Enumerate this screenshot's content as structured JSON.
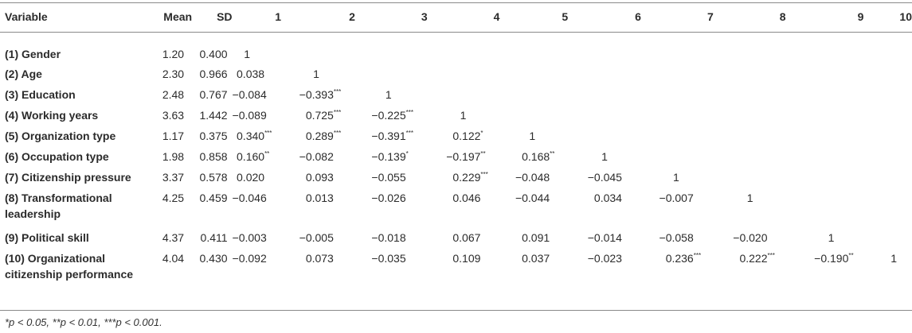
{
  "headers": [
    "Variable",
    "Mean",
    "SD",
    "1",
    "2",
    "3",
    "4",
    "5",
    "6",
    "7",
    "8",
    "9",
    "10"
  ],
  "rows": [
    {
      "variable": "(1) Gender",
      "mean": "1.20",
      "sd": "0.400",
      "cells": [
        {
          "v": "1",
          "s": ""
        }
      ]
    },
    {
      "variable": "(2) Age",
      "mean": "2.30",
      "sd": "0.966",
      "cells": [
        {
          "v": "0.038",
          "s": ""
        },
        {
          "v": "1",
          "s": ""
        }
      ]
    },
    {
      "variable": "(3) Education",
      "mean": "2.48",
      "sd": "0.767",
      "cells": [
        {
          "v": "−0.084",
          "s": ""
        },
        {
          "v": "−0.393",
          "s": "***"
        },
        {
          "v": "1",
          "s": ""
        }
      ]
    },
    {
      "variable": "(4) Working years",
      "mean": "3.63",
      "sd": "1.442",
      "cells": [
        {
          "v": "−0.089",
          "s": ""
        },
        {
          "v": "0.725",
          "s": "***"
        },
        {
          "v": "−0.225",
          "s": "***"
        },
        {
          "v": "1",
          "s": ""
        }
      ]
    },
    {
      "variable": "(5) Organization type",
      "mean": "1.17",
      "sd": "0.375",
      "cells": [
        {
          "v": "0.340",
          "s": "***"
        },
        {
          "v": "0.289",
          "s": "***"
        },
        {
          "v": "−0.391",
          "s": "***"
        },
        {
          "v": "0.122",
          "s": "*"
        },
        {
          "v": "1",
          "s": ""
        }
      ]
    },
    {
      "variable": "(6) Occupation type",
      "mean": "1.98",
      "sd": "0.858",
      "cells": [
        {
          "v": "0.160",
          "s": "**"
        },
        {
          "v": "−0.082",
          "s": ""
        },
        {
          "v": "−0.139",
          "s": "*"
        },
        {
          "v": "−0.197",
          "s": "**"
        },
        {
          "v": "0.168",
          "s": "**"
        },
        {
          "v": "1",
          "s": ""
        }
      ]
    },
    {
      "variable": "(7) Citizenship pressure",
      "mean": "3.37",
      "sd": "0.578",
      "cells": [
        {
          "v": "0.020",
          "s": ""
        },
        {
          "v": "0.093",
          "s": ""
        },
        {
          "v": "−0.055",
          "s": ""
        },
        {
          "v": "0.229",
          "s": "***"
        },
        {
          "v": "−0.048",
          "s": ""
        },
        {
          "v": "−0.045",
          "s": ""
        },
        {
          "v": "1",
          "s": ""
        }
      ]
    },
    {
      "variable": "(8) Transformational leadership",
      "mean": "4.25",
      "sd": "0.459",
      "cells": [
        {
          "v": "−0.046",
          "s": ""
        },
        {
          "v": "0.013",
          "s": ""
        },
        {
          "v": "−0.026",
          "s": ""
        },
        {
          "v": "0.046",
          "s": ""
        },
        {
          "v": "−0.044",
          "s": ""
        },
        {
          "v": "0.034",
          "s": ""
        },
        {
          "v": "−0.007",
          "s": ""
        },
        {
          "v": "1",
          "s": ""
        }
      ]
    },
    {
      "variable": "(9) Political skill",
      "mean": "4.37",
      "sd": "0.411",
      "cells": [
        {
          "v": "−0.003",
          "s": ""
        },
        {
          "v": "−0.005",
          "s": ""
        },
        {
          "v": "−0.018",
          "s": ""
        },
        {
          "v": "0.067",
          "s": ""
        },
        {
          "v": "0.091",
          "s": ""
        },
        {
          "v": "−0.014",
          "s": ""
        },
        {
          "v": "−0.058",
          "s": ""
        },
        {
          "v": "−0.020",
          "s": ""
        },
        {
          "v": "1",
          "s": ""
        }
      ]
    },
    {
      "variable": "(10) Organizational citizenship performance",
      "mean": "4.04",
      "sd": "0.430",
      "cells": [
        {
          "v": "−0.092",
          "s": ""
        },
        {
          "v": "0.073",
          "s": ""
        },
        {
          "v": "−0.035",
          "s": ""
        },
        {
          "v": "0.109",
          "s": ""
        },
        {
          "v": "0.037",
          "s": ""
        },
        {
          "v": "−0.023",
          "s": ""
        },
        {
          "v": "0.236",
          "s": "***"
        },
        {
          "v": "0.222",
          "s": "***"
        },
        {
          "v": "−0.190",
          "s": "**"
        },
        {
          "v": "1",
          "s": ""
        }
      ]
    }
  ],
  "footnote": "*p < 0.05, **p < 0.01, ***p < 0.001."
}
